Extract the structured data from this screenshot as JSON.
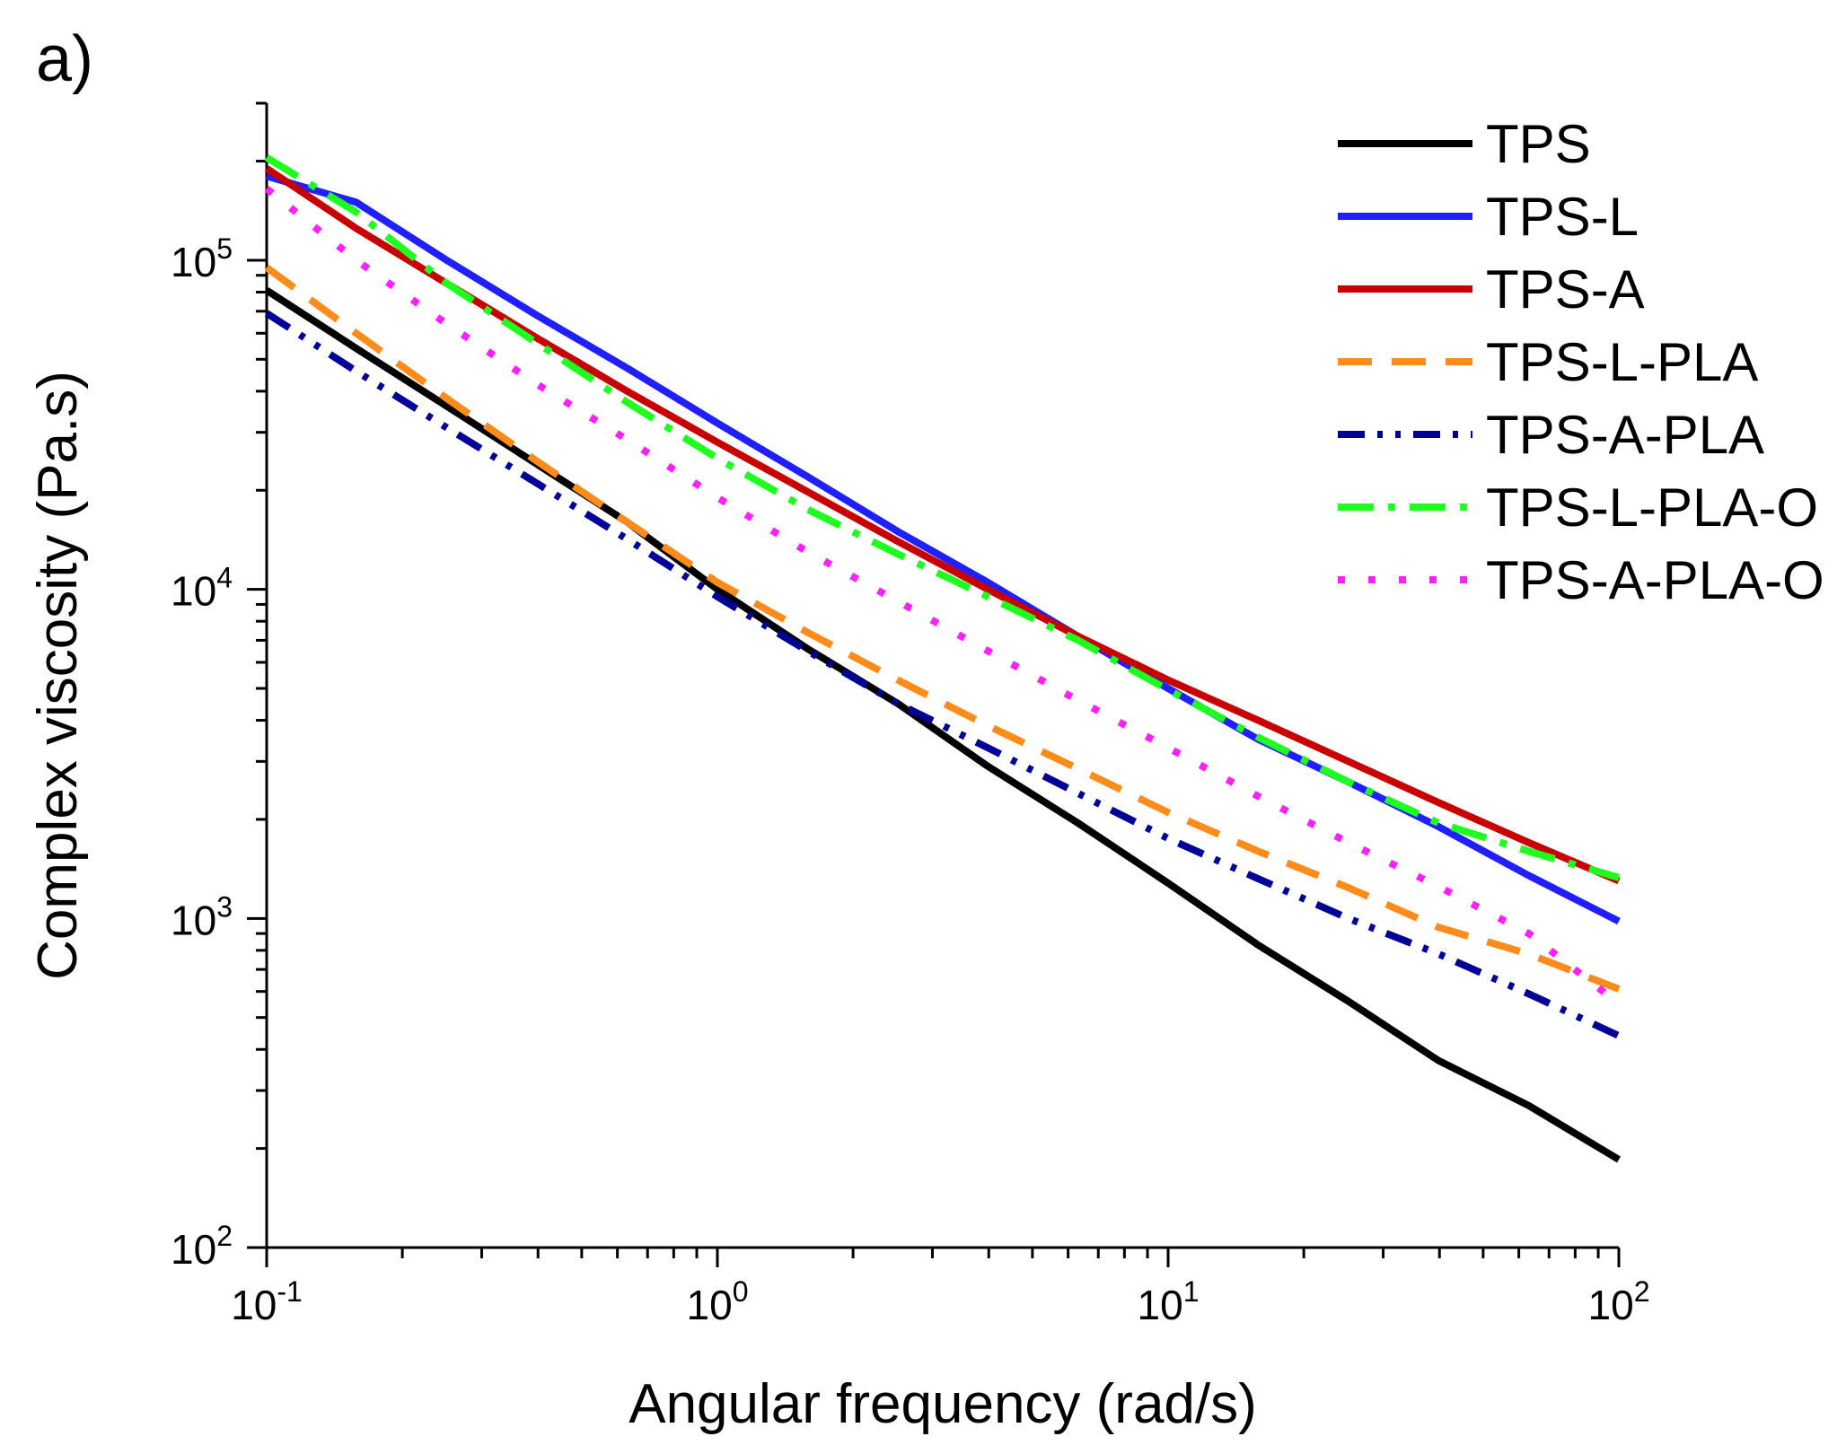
{
  "panel_label": "a)",
  "chart_data": {
    "type": "line",
    "xlabel": "Angular frequency (rad/s)",
    "ylabel": "Complex viscosity (Pa.s)",
    "x_scale": "log",
    "y_scale": "log",
    "xlim": [
      0.1,
      100
    ],
    "ylim": [
      100,
      300000
    ],
    "x_ticks": [
      {
        "value": 0.1,
        "base": "10",
        "exp": "-1"
      },
      {
        "value": 1,
        "base": "10",
        "exp": "0"
      },
      {
        "value": 10,
        "base": "10",
        "exp": "1"
      },
      {
        "value": 100,
        "base": "10",
        "exp": "2"
      }
    ],
    "y_ticks": [
      {
        "value": 100,
        "base": "10",
        "exp": "2"
      },
      {
        "value": 1000,
        "base": "10",
        "exp": "3"
      },
      {
        "value": 10000,
        "base": "10",
        "exp": "4"
      },
      {
        "value": 100000,
        "base": "10",
        "exp": "5"
      }
    ],
    "grid": false,
    "legend_position": "top-right",
    "series": [
      {
        "name": "TPS",
        "color": "#000000",
        "dash": "solid",
        "x": [
          0.1,
          0.158,
          0.251,
          0.398,
          0.631,
          1,
          1.585,
          2.512,
          3.981,
          6.31,
          10,
          15.85,
          25.12,
          39.81,
          63.1,
          100
        ],
        "y": [
          81000,
          54000,
          36000,
          24000,
          16000,
          10000,
          6600,
          4500,
          2900,
          1950,
          1280,
          830,
          560,
          370,
          270,
          185
        ]
      },
      {
        "name": "TPS-L",
        "color": "#1f1fff",
        "dash": "solid",
        "x": [
          0.1,
          0.158,
          0.251,
          0.398,
          0.631,
          1,
          1.585,
          2.512,
          3.981,
          6.31,
          10,
          15.85,
          25.12,
          39.81,
          63.1,
          100
        ],
        "y": [
          180000,
          150000,
          100000,
          68000,
          47000,
          32000,
          22000,
          15000,
          10500,
          7200,
          5000,
          3500,
          2600,
          1900,
          1350,
          980
        ]
      },
      {
        "name": "TPS-A",
        "color": "#c80000",
        "dash": "solid",
        "x": [
          0.1,
          0.158,
          0.251,
          0.398,
          0.631,
          1,
          1.585,
          2.512,
          3.981,
          6.31,
          10,
          15.85,
          25.12,
          39.81,
          63.1,
          100
        ],
        "y": [
          190000,
          125000,
          85000,
          58000,
          40000,
          28000,
          19800,
          14000,
          10000,
          7200,
          5300,
          4000,
          3000,
          2250,
          1700,
          1300
        ]
      },
      {
        "name": "TPS-L-PLA",
        "color": "#ff8c1a",
        "dash": "long-dash",
        "x": [
          0.1,
          0.158,
          0.251,
          0.398,
          0.631,
          1,
          1.585,
          2.512,
          3.981,
          6.31,
          10,
          15.85,
          25.12,
          39.81,
          63.1,
          100
        ],
        "y": [
          95000,
          60000,
          38000,
          24500,
          16000,
          10500,
          7400,
          5300,
          3850,
          2850,
          2100,
          1600,
          1240,
          940,
          780,
          610
        ]
      },
      {
        "name": "TPS-A-PLA",
        "color": "#000099",
        "dash": "dash-dot-dot",
        "x": [
          0.1,
          0.158,
          0.251,
          0.398,
          0.631,
          1,
          1.585,
          2.512,
          3.981,
          6.31,
          10,
          15.85,
          25.12,
          39.81,
          63.1,
          100
        ],
        "y": [
          69000,
          46000,
          31000,
          21000,
          14200,
          9500,
          6500,
          4500,
          3300,
          2400,
          1750,
          1320,
          1000,
          780,
          590,
          440
        ]
      },
      {
        "name": "TPS-L-PLA-O",
        "color": "#1fff1f",
        "dash": "dash-dot",
        "x": [
          0.1,
          0.158,
          0.251,
          0.398,
          0.631,
          1,
          1.585,
          2.512,
          3.981,
          6.31,
          10,
          15.85,
          25.12,
          39.81,
          63.1,
          100
        ],
        "y": [
          205000,
          140000,
          85000,
          56000,
          37000,
          25000,
          17500,
          12800,
          9500,
          7000,
          4950,
          3550,
          2600,
          1950,
          1600,
          1330
        ]
      },
      {
        "name": "TPS-A-PLA-O",
        "color": "#ff1fff",
        "dash": "dot",
        "x": [
          0.1,
          0.158,
          0.251,
          0.398,
          0.631,
          1,
          1.585,
          2.512,
          3.981,
          6.31,
          10,
          15.85,
          25.12,
          39.81,
          63.1,
          100
        ],
        "y": [
          165000,
          100000,
          64000,
          42000,
          28500,
          19000,
          13000,
          9200,
          6500,
          4600,
          3300,
          2350,
          1700,
          1250,
          900,
          550
        ]
      }
    ]
  }
}
